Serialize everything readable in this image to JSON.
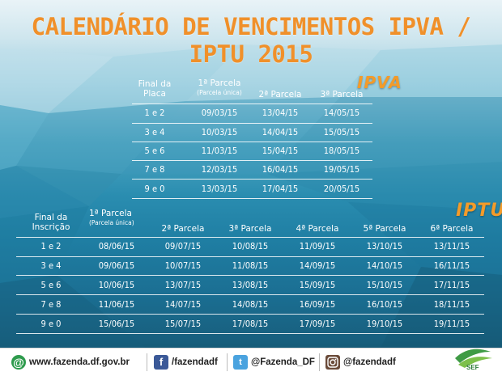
{
  "title": "CALENDÁRIO DE VENCIMENTOS IPVA / IPTU 2015",
  "ipva": {
    "tag": "IPVA",
    "headers": {
      "final": [
        "Final da",
        "Placa"
      ],
      "p1": "1ª Parcela",
      "p1_sub": "(Parcela única)",
      "p2": "2ª Parcela",
      "p3": "3ª Parcela"
    },
    "rows": [
      [
        "1 e 2",
        "09/03/15",
        "13/04/15",
        "14/05/15"
      ],
      [
        "3 e 4",
        "10/03/15",
        "14/04/15",
        "15/05/15"
      ],
      [
        "5 e 6",
        "11/03/15",
        "15/04/15",
        "18/05/15"
      ],
      [
        "7 e 8",
        "12/03/15",
        "16/04/15",
        "19/05/15"
      ],
      [
        "9 e 0",
        "13/03/15",
        "17/04/15",
        "20/05/15"
      ]
    ]
  },
  "iptu": {
    "tag": "IPTU",
    "headers": {
      "final": [
        "Final da",
        "Inscrição"
      ],
      "p1": "1ª Parcela",
      "p1_sub": "(Parcela única)",
      "p2": "2ª Parcela",
      "p3": "3ª Parcela",
      "p4": "4ª Parcela",
      "p5": "5ª Parcela",
      "p6": "6ª Parcela"
    },
    "rows": [
      [
        "1 e 2",
        "08/06/15",
        "09/07/15",
        "10/08/15",
        "11/09/15",
        "13/10/15",
        "13/11/15"
      ],
      [
        "3 e 4",
        "09/06/15",
        "10/07/15",
        "11/08/15",
        "14/09/15",
        "14/10/15",
        "16/11/15"
      ],
      [
        "5 e 6",
        "10/06/15",
        "13/07/15",
        "13/08/15",
        "15/09/15",
        "15/10/15",
        "17/11/15"
      ],
      [
        "7 e 8",
        "11/06/15",
        "14/07/15",
        "14/08/15",
        "16/09/15",
        "16/10/15",
        "18/11/15"
      ],
      [
        "9 e 0",
        "15/06/15",
        "15/07/15",
        "17/08/15",
        "17/09/15",
        "19/10/15",
        "19/11/15"
      ]
    ]
  },
  "footer": {
    "website": "www.fazenda.df.gov.br",
    "facebook": "/fazendadf",
    "twitter": "@Fazenda_DF",
    "instagram": "@fazendadf",
    "logo_text": "SEF",
    "icons": [
      "at-icon",
      "facebook-icon",
      "twitter-icon",
      "instagram-icon"
    ]
  },
  "colors": {
    "title": "#f0902a",
    "tag": "#f39b2a",
    "text": "#ffffff",
    "facebook": "#3b5998",
    "twitter": "#4aa3df",
    "instagram": "#6b4b3a",
    "at": "#2e9b4d",
    "logo": "#2d7d3a"
  }
}
